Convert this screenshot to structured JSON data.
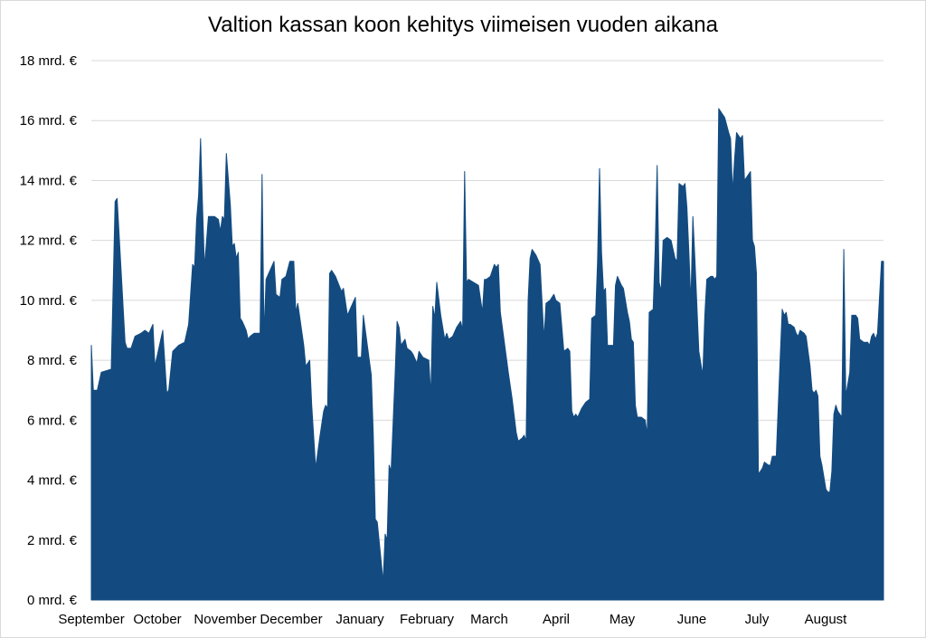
{
  "chart_data": {
    "type": "area",
    "title": "Valtion kassan koon kehitys viimeisen vuoden aikana",
    "xlabel": "",
    "ylabel": "",
    "ylim": [
      0,
      18
    ],
    "y_ticks": [
      "0 mrd. €",
      "2 mrd. €",
      "4 mrd. €",
      "6 mrd. €",
      "8 mrd. €",
      "10 mrd. €",
      "12 mrd. €",
      "14 mrd. €",
      "16 mrd. €",
      "18 mrd. €"
    ],
    "x_tick_labels": [
      "September",
      "October",
      "November",
      "December",
      "January",
      "February",
      "March",
      "April",
      "May",
      "June",
      "July",
      "August"
    ],
    "grid": true,
    "fill_color": "#134b80",
    "series": [
      {
        "values": [
          [
            0,
            8.5
          ],
          [
            1,
            7.0
          ],
          [
            3,
            7.0
          ],
          [
            5,
            7.6
          ],
          [
            10,
            7.7
          ],
          [
            12,
            13.3
          ],
          [
            13,
            13.4
          ],
          [
            17,
            8.6
          ],
          [
            18,
            8.4
          ],
          [
            20,
            8.4
          ],
          [
            22,
            8.8
          ],
          [
            25,
            8.9
          ],
          [
            27,
            9.0
          ],
          [
            29,
            8.9
          ],
          [
            31,
            9.2
          ],
          [
            32,
            7.8
          ],
          [
            36,
            9.0
          ],
          [
            38,
            6.9
          ],
          [
            39,
            7.0
          ],
          [
            41,
            8.3
          ],
          [
            44,
            8.5
          ],
          [
            47,
            8.6
          ],
          [
            49,
            9.2
          ],
          [
            51,
            11.2
          ],
          [
            52,
            11.1
          ],
          [
            53,
            12.7
          ],
          [
            54,
            13.5
          ],
          [
            55,
            15.4
          ],
          [
            56,
            13.2
          ],
          [
            57,
            11.1
          ],
          [
            59,
            12.8
          ],
          [
            62,
            12.8
          ],
          [
            64,
            12.7
          ],
          [
            65,
            12.3
          ],
          [
            66,
            12.8
          ],
          [
            67,
            12.7
          ],
          [
            68,
            14.9
          ],
          [
            70,
            13.2
          ],
          [
            71,
            11.8
          ],
          [
            72,
            11.9
          ],
          [
            73,
            11.4
          ],
          [
            74,
            11.6
          ],
          [
            75,
            9.4
          ],
          [
            76,
            9.3
          ],
          [
            78,
            9.0
          ],
          [
            79,
            8.7
          ],
          [
            80,
            8.8
          ],
          [
            82,
            8.9
          ],
          [
            85,
            8.9
          ],
          [
            86,
            14.2
          ],
          [
            87,
            8.8
          ],
          [
            88,
            10.7
          ],
          [
            90,
            11.0
          ],
          [
            92,
            11.3
          ],
          [
            93,
            10.2
          ],
          [
            95,
            10.1
          ],
          [
            96,
            10.7
          ],
          [
            98,
            10.8
          ],
          [
            100,
            11.3
          ],
          [
            102,
            11.3
          ],
          [
            103,
            9.6
          ],
          [
            104,
            9.9
          ],
          [
            107,
            8.5
          ],
          [
            108,
            7.8
          ],
          [
            110,
            8.0
          ],
          [
            111,
            6.5
          ],
          [
            113,
            4.4
          ],
          [
            115,
            5.4
          ],
          [
            117,
            6.3
          ],
          [
            118,
            6.5
          ],
          [
            119,
            6.4
          ],
          [
            120,
            10.9
          ],
          [
            121,
            11.0
          ],
          [
            123,
            10.8
          ],
          [
            126,
            10.3
          ],
          [
            127,
            10.4
          ],
          [
            129,
            9.5
          ],
          [
            131,
            9.8
          ],
          [
            133,
            10.1
          ],
          [
            134,
            8.1
          ],
          [
            136,
            8.1
          ],
          [
            137,
            9.5
          ],
          [
            140,
            8.0
          ],
          [
            141,
            7.5
          ],
          [
            142,
            5.5
          ],
          [
            143,
            2.7
          ],
          [
            144,
            2.6
          ],
          [
            146,
            1.3
          ],
          [
            147,
            0.6
          ],
          [
            148,
            2.2
          ],
          [
            149,
            2.0
          ],
          [
            150,
            4.5
          ],
          [
            151,
            4.3
          ],
          [
            153,
            7.5
          ],
          [
            154,
            9.3
          ],
          [
            155,
            9.1
          ],
          [
            156,
            8.5
          ],
          [
            157,
            8.6
          ],
          [
            158,
            8.7
          ],
          [
            159,
            8.4
          ],
          [
            161,
            8.3
          ],
          [
            162,
            8.2
          ],
          [
            164,
            7.9
          ],
          [
            165,
            8.3
          ],
          [
            167,
            8.1
          ],
          [
            170,
            8.0
          ],
          [
            171,
            6.8
          ],
          [
            172,
            9.8
          ],
          [
            173,
            9.4
          ],
          [
            174,
            10.6
          ],
          [
            176,
            9.5
          ],
          [
            178,
            8.7
          ],
          [
            179,
            8.9
          ],
          [
            180,
            8.7
          ],
          [
            182,
            8.8
          ],
          [
            184,
            9.1
          ],
          [
            186,
            9.3
          ],
          [
            187,
            9.0
          ],
          [
            188,
            14.3
          ],
          [
            189,
            10.6
          ],
          [
            190,
            10.7
          ],
          [
            195,
            10.5
          ],
          [
            197,
            9.6
          ],
          [
            198,
            10.7
          ],
          [
            199,
            10.7
          ],
          [
            201,
            10.8
          ],
          [
            203,
            11.2
          ],
          [
            204,
            11.1
          ],
          [
            205,
            11.2
          ],
          [
            206,
            9.6
          ],
          [
            208,
            8.6
          ],
          [
            210,
            7.6
          ],
          [
            212,
            6.7
          ],
          [
            214,
            5.6
          ],
          [
            215,
            5.3
          ],
          [
            217,
            5.4
          ],
          [
            218,
            5.5
          ],
          [
            219,
            5.3
          ],
          [
            220,
            10.0
          ],
          [
            221,
            11.4
          ],
          [
            222,
            11.7
          ],
          [
            224,
            11.5
          ],
          [
            226,
            11.2
          ],
          [
            228,
            8.7
          ],
          [
            229,
            9.9
          ],
          [
            231,
            10.0
          ],
          [
            233,
            10.2
          ],
          [
            234,
            10.0
          ],
          [
            236,
            9.9
          ],
          [
            238,
            8.3
          ],
          [
            240,
            8.4
          ],
          [
            241,
            8.3
          ],
          [
            242,
            6.3
          ],
          [
            243,
            6.1
          ],
          [
            244,
            6.2
          ],
          [
            245,
            6.1
          ],
          [
            247,
            6.4
          ],
          [
            249,
            6.6
          ],
          [
            251,
            6.7
          ],
          [
            252,
            9.4
          ],
          [
            254,
            9.5
          ],
          [
            255,
            11.3
          ],
          [
            256,
            14.4
          ],
          [
            257,
            11.6
          ],
          [
            258,
            10.3
          ],
          [
            259,
            10.4
          ],
          [
            260,
            8.5
          ],
          [
            263,
            8.5
          ],
          [
            264,
            10.5
          ],
          [
            265,
            10.8
          ],
          [
            267,
            10.5
          ],
          [
            268,
            10.4
          ],
          [
            270,
            9.6
          ],
          [
            271,
            9.3
          ],
          [
            272,
            8.7
          ],
          [
            273,
            8.6
          ],
          [
            274,
            6.5
          ],
          [
            275,
            6.1
          ],
          [
            277,
            6.1
          ],
          [
            279,
            6.0
          ],
          [
            280,
            5.5
          ],
          [
            281,
            9.6
          ],
          [
            283,
            9.7
          ],
          [
            284,
            11.7
          ],
          [
            285,
            14.5
          ],
          [
            286,
            10.6
          ],
          [
            287,
            10.3
          ],
          [
            288,
            12.0
          ],
          [
            290,
            12.1
          ],
          [
            292,
            12.0
          ],
          [
            294,
            11.4
          ],
          [
            295,
            11.3
          ],
          [
            296,
            13.9
          ],
          [
            298,
            13.8
          ],
          [
            299,
            13.9
          ],
          [
            300,
            13.1
          ],
          [
            301,
            11.6
          ],
          [
            302,
            9.9
          ],
          [
            303,
            12.8
          ],
          [
            304,
            11.4
          ],
          [
            306,
            8.3
          ],
          [
            307,
            7.9
          ],
          [
            308,
            7.5
          ],
          [
            309,
            9.5
          ],
          [
            310,
            10.7
          ],
          [
            312,
            10.8
          ],
          [
            313,
            10.8
          ],
          [
            314,
            10.7
          ],
          [
            315,
            10.8
          ],
          [
            316,
            16.4
          ],
          [
            318,
            16.2
          ],
          [
            319,
            16.1
          ],
          [
            321,
            15.6
          ],
          [
            322,
            15.4
          ],
          [
            323,
            13.6
          ],
          [
            324,
            14.7
          ],
          [
            325,
            15.6
          ],
          [
            327,
            15.4
          ],
          [
            328,
            15.5
          ],
          [
            329,
            14.0
          ],
          [
            332,
            14.3
          ],
          [
            333,
            12.0
          ],
          [
            334,
            11.8
          ],
          [
            335,
            10.9
          ],
          [
            336,
            4.2
          ],
          [
            337,
            4.3
          ],
          [
            338,
            4.4
          ],
          [
            339,
            4.6
          ],
          [
            341,
            4.5
          ],
          [
            342,
            4.5
          ],
          [
            343,
            4.8
          ],
          [
            345,
            4.8
          ],
          [
            347,
            8.1
          ],
          [
            348,
            9.7
          ],
          [
            349,
            9.5
          ],
          [
            350,
            9.6
          ],
          [
            351,
            9.2
          ],
          [
            352,
            9.2
          ],
          [
            354,
            9.1
          ],
          [
            355,
            8.9
          ],
          [
            356,
            8.8
          ],
          [
            357,
            9.0
          ],
          [
            359,
            8.9
          ],
          [
            360,
            8.8
          ],
          [
            362,
            7.8
          ],
          [
            363,
            7.0
          ],
          [
            364,
            6.9
          ],
          [
            365,
            7.0
          ],
          [
            366,
            6.8
          ],
          [
            367,
            4.8
          ],
          [
            368,
            4.5
          ],
          [
            369,
            4.1
          ],
          [
            370,
            3.7
          ],
          [
            371,
            3.6
          ],
          [
            372,
            3.6
          ],
          [
            373,
            4.3
          ],
          [
            374,
            6.2
          ],
          [
            375,
            6.5
          ],
          [
            376,
            6.3
          ],
          [
            377,
            6.2
          ],
          [
            378,
            6.1
          ],
          [
            379,
            11.7
          ],
          [
            380,
            6.8
          ],
          [
            382,
            7.6
          ],
          [
            383,
            9.5
          ],
          [
            385,
            9.5
          ],
          [
            386,
            9.4
          ],
          [
            387,
            8.7
          ],
          [
            389,
            8.6
          ],
          [
            391,
            8.6
          ],
          [
            392,
            8.5
          ],
          [
            393,
            8.8
          ],
          [
            394,
            8.9
          ],
          [
            395,
            8.7
          ],
          [
            396,
            8.9
          ],
          [
            398,
            11.3
          ],
          [
            399,
            11.3
          ]
        ]
      }
    ]
  }
}
